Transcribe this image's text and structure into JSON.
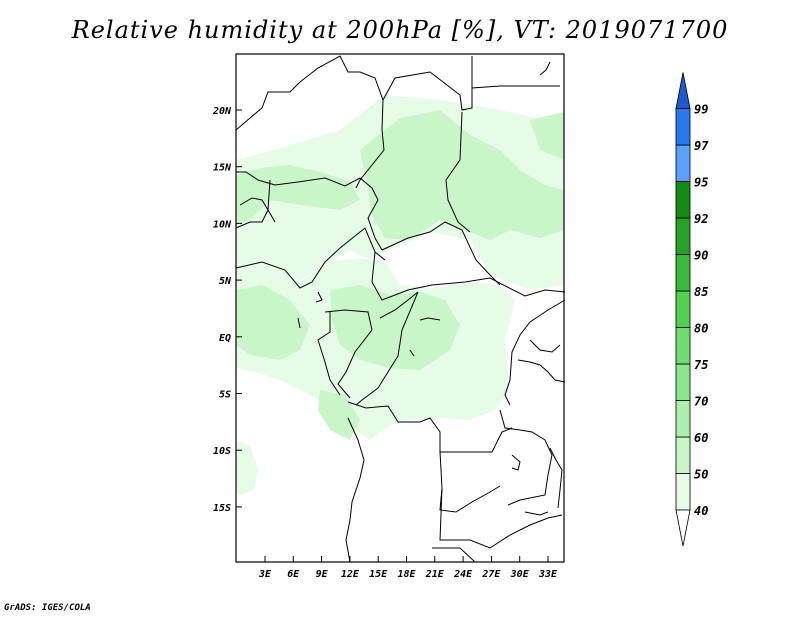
{
  "title": "Relative humidity at 200hPa [%], VT: 2019071700",
  "credit": "GrADS: IGES/COLA",
  "map": {
    "lat_labels": [
      "20N",
      "15N",
      "10N",
      "5N",
      "EQ",
      "5S",
      "10S",
      "15S"
    ],
    "lon_labels": [
      "3E",
      "6E",
      "9E",
      "12E",
      "15E",
      "18E",
      "21E",
      "24E",
      "27E",
      "30E",
      "33E"
    ]
  },
  "colorbar": {
    "levels": [
      "40",
      "50",
      "60",
      "70",
      "75",
      "80",
      "85",
      "90",
      "92",
      "95",
      "97",
      "99"
    ],
    "colors": [
      "#ffffff",
      "#e6fce6",
      "#c8f6c8",
      "#aaf0aa",
      "#8ce68c",
      "#6edc6e",
      "#50d250",
      "#3ab83a",
      "#26a226",
      "#148c14",
      "#5aa0ff",
      "#2878f0",
      "#1e5ad2"
    ]
  },
  "field_colors": {
    "light": "#e6fce6",
    "mid": "#c8f6c8"
  }
}
